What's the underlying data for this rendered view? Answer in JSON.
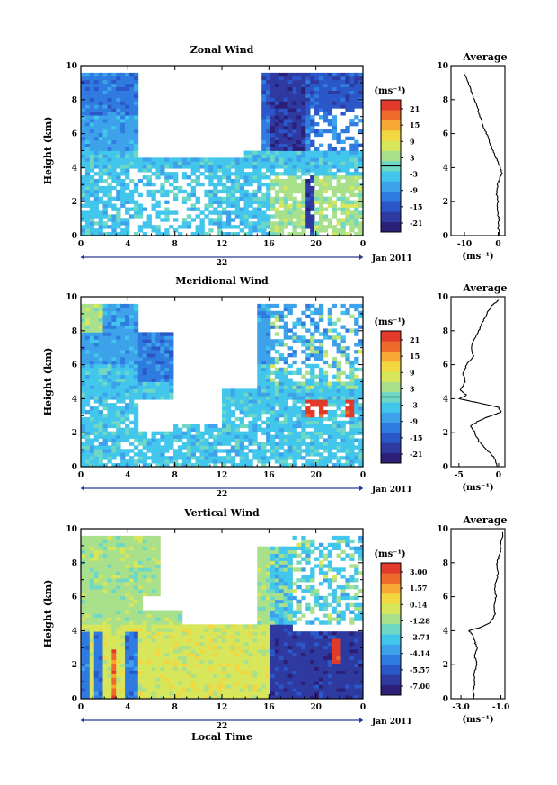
{
  "panels": [
    {
      "title": "Zonal Wind",
      "ylabel": "Height (km)",
      "xticks": [
        "0",
        "4",
        "8",
        "12",
        "16",
        "20",
        "0"
      ],
      "day_label": "22",
      "date_label": "Jan 2011",
      "xlabel": "",
      "colorbar": {
        "unit": "(ms⁻¹)",
        "ticks": [
          "21",
          "15",
          "9",
          "3",
          "-3",
          "-9",
          "-15",
          "-21"
        ],
        "marker_index": 4
      },
      "avg": {
        "title": "Average",
        "xticks": [
          "-10",
          "0"
        ],
        "xlim": [
          -14,
          2
        ],
        "unit": "(ms⁻¹)",
        "profile": [
          [
            -10,
            9.5
          ],
          [
            -9,
            9
          ],
          [
            -8,
            8.5
          ],
          [
            -7,
            8
          ],
          [
            -6,
            7.5
          ],
          [
            -5.5,
            7
          ],
          [
            -4.5,
            6.5
          ],
          [
            -3.5,
            6
          ],
          [
            -2.5,
            5.5
          ],
          [
            -1.5,
            5
          ],
          [
            -0.5,
            4.5
          ],
          [
            0.5,
            4.0
          ],
          [
            1.2,
            3.7
          ],
          [
            0.5,
            3.4
          ],
          [
            -0.2,
            3.0
          ],
          [
            -0.5,
            2.5
          ],
          [
            0,
            2.0
          ],
          [
            -0.3,
            1.5
          ],
          [
            0.2,
            1.0
          ],
          [
            0,
            0.5
          ],
          [
            0.3,
            0
          ]
        ]
      }
    },
    {
      "title": "Meridional Wind",
      "ylabel": "Height (km)",
      "xticks": [
        "0",
        "4",
        "8",
        "12",
        "16",
        "20",
        "0"
      ],
      "day_label": "22",
      "date_label": "Jan 2011",
      "xlabel": "",
      "colorbar": {
        "unit": "(ms⁻¹)",
        "ticks": [
          "21",
          "15",
          "9",
          "3",
          "-3",
          "-9",
          "-15",
          "-21"
        ],
        "marker_index": 4
      },
      "avg": {
        "title": "Average",
        "xticks": [
          "-5",
          "0"
        ],
        "xlim": [
          -6,
          0.8
        ],
        "unit": "(ms⁻¹)",
        "profile": [
          [
            0,
            9.8
          ],
          [
            -0.8,
            9.5
          ],
          [
            -1.5,
            9
          ],
          [
            -2,
            8.5
          ],
          [
            -2.5,
            8
          ],
          [
            -3,
            7.5
          ],
          [
            -3.5,
            7
          ],
          [
            -3.2,
            6.5
          ],
          [
            -4,
            6
          ],
          [
            -4.5,
            5.5
          ],
          [
            -4.2,
            5
          ],
          [
            -4.8,
            4.5
          ],
          [
            -4,
            4.2
          ],
          [
            -5,
            4.0
          ],
          [
            -3,
            3.8
          ],
          [
            0,
            3.5
          ],
          [
            0.3,
            3.2
          ],
          [
            -1,
            3.0
          ],
          [
            -2.5,
            2.7
          ],
          [
            -3.5,
            2.4
          ],
          [
            -3,
            2.0
          ],
          [
            -2.5,
            1.5
          ],
          [
            -1.5,
            1.0
          ],
          [
            -0.5,
            0.5
          ],
          [
            -0.2,
            0
          ]
        ]
      }
    },
    {
      "title": "Vertical Wind",
      "ylabel": "Height (km)",
      "xticks": [
        "0",
        "4",
        "8",
        "12",
        "16",
        "20",
        "0"
      ],
      "day_label": "22",
      "date_label": "Jan 2011",
      "xlabel": "Local Time",
      "colorbar": {
        "unit": "(ms⁻¹)",
        "ticks": [
          "3.00",
          "1.57",
          "0.14",
          "-1.28",
          "-2.71",
          "-4.14",
          "-5.57",
          "-7.00"
        ],
        "marker_index": null
      },
      "avg": {
        "title": "Average",
        "xticks": [
          "-3.0",
          "-1.0"
        ],
        "xlim": [
          -3.5,
          -0.8
        ],
        "unit": "(ms⁻¹)",
        "profile": [
          [
            -0.9,
            9.8
          ],
          [
            -1,
            9
          ],
          [
            -1.05,
            8.5
          ],
          [
            -1.2,
            8
          ],
          [
            -1.15,
            7.5
          ],
          [
            -1.2,
            7
          ],
          [
            -1.3,
            6.5
          ],
          [
            -1.25,
            6
          ],
          [
            -1.35,
            5.5
          ],
          [
            -1.3,
            5
          ],
          [
            -1.5,
            4.5
          ],
          [
            -2,
            4.2
          ],
          [
            -2.6,
            4.0
          ],
          [
            -2.4,
            3.7
          ],
          [
            -2.3,
            3.3
          ],
          [
            -2.2,
            3.0
          ],
          [
            -2.3,
            2.5
          ],
          [
            -2.2,
            2.0
          ],
          [
            -2.35,
            1.5
          ],
          [
            -2.3,
            1.0
          ],
          [
            -2.4,
            0.5
          ],
          [
            -2.35,
            0
          ]
        ]
      }
    }
  ],
  "chart_data": [
    {
      "type": "heatmap",
      "title": "Zonal Wind",
      "xlabel": "",
      "ylabel": "Height (km)",
      "x_range": [
        0,
        24
      ],
      "ylim": [
        0,
        10
      ],
      "z_range": [
        -21,
        21
      ],
      "x_ticks": [
        0,
        4,
        8,
        12,
        16,
        20,
        24
      ]
    },
    {
      "type": "heatmap",
      "title": "Meridional Wind",
      "xlabel": "",
      "ylabel": "Height (km)",
      "x_range": [
        0,
        24
      ],
      "ylim": [
        0,
        10
      ],
      "z_range": [
        -21,
        21
      ],
      "x_ticks": [
        0,
        4,
        8,
        12,
        16,
        20,
        24
      ]
    },
    {
      "type": "heatmap",
      "title": "Vertical Wind",
      "xlabel": "Local Time",
      "ylabel": "Height (km)",
      "x_range": [
        0,
        24
      ],
      "ylim": [
        0,
        10
      ],
      "z_range": [
        -7,
        3
      ],
      "x_ticks": [
        0,
        4,
        8,
        12,
        16,
        20,
        24
      ]
    }
  ],
  "colormap": [
    "#2b1f78",
    "#2e3a9f",
    "#2b57c9",
    "#2f7be0",
    "#3da2ea",
    "#42c6ec",
    "#6fd8c4",
    "#a8e08b",
    "#d7e65a",
    "#f3d741",
    "#f6a833",
    "#ee6a2b",
    "#e23a2a"
  ]
}
